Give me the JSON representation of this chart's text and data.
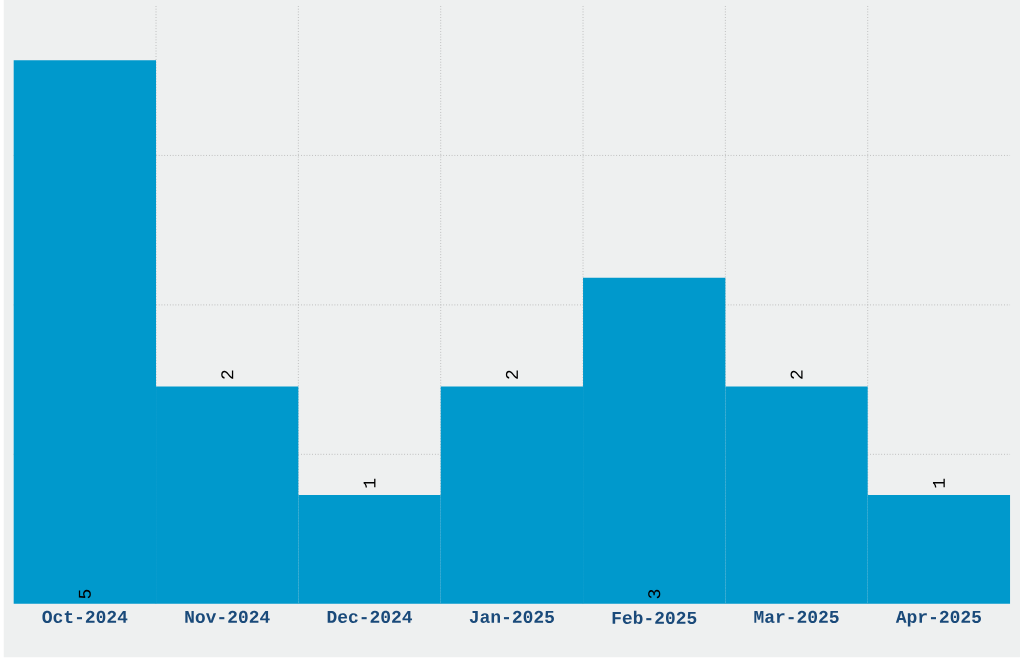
{
  "chart_data": {
    "type": "bar",
    "categories": [
      "Oct-2024",
      "Nov-2024",
      "Dec-2024",
      "Jan-2025",
      "Feb-2025",
      "Mar-2025",
      "Apr-2025"
    ],
    "values": [
      5,
      2,
      1,
      2,
      3,
      2,
      1
    ],
    "color": "#0099cc",
    "ylim": [
      0,
      5.5
    ],
    "yticks": [
      {
        "value": 1.375,
        "label": null
      },
      {
        "value": 2.75,
        "label": null
      },
      {
        "value": 4.125,
        "label": null
      }
    ],
    "tick_labels": "x",
    "grid": true,
    "data_labels": true
  }
}
